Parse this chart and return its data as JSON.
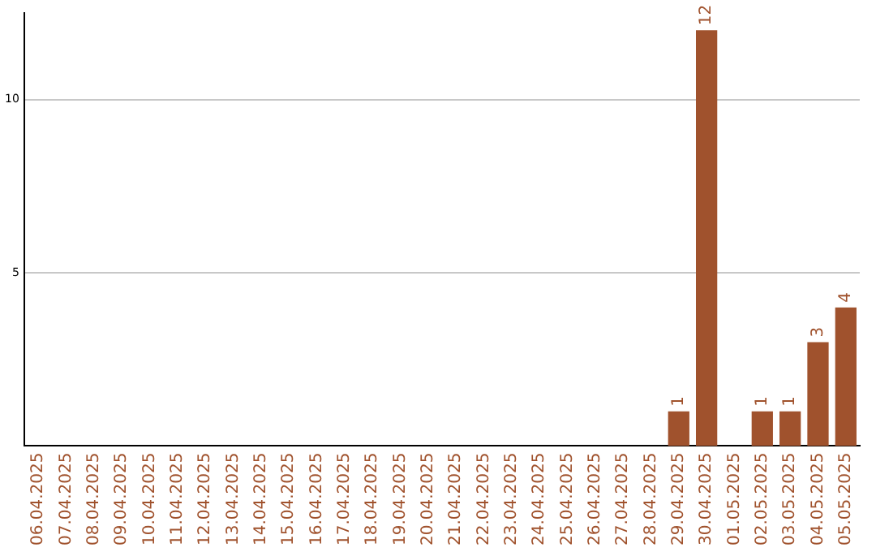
{
  "chart_data": {
    "type": "bar",
    "categories": [
      "06.04.2025",
      "07.04.2025",
      "08.04.2025",
      "09.04.2025",
      "10.04.2025",
      "11.04.2025",
      "12.04.2025",
      "13.04.2025",
      "14.04.2025",
      "15.04.2025",
      "16.04.2025",
      "17.04.2025",
      "18.04.2025",
      "19.04.2025",
      "20.04.2025",
      "21.04.2025",
      "22.04.2025",
      "23.04.2025",
      "24.04.2025",
      "25.04.2025",
      "26.04.2025",
      "27.04.2025",
      "28.04.2025",
      "29.04.2025",
      "30.04.2025",
      "01.05.2025",
      "02.05.2025",
      "03.05.2025",
      "04.05.2025",
      "05.05.2025"
    ],
    "values": [
      0,
      0,
      0,
      0,
      0,
      0,
      0,
      0,
      0,
      0,
      0,
      0,
      0,
      0,
      0,
      0,
      0,
      0,
      0,
      0,
      0,
      0,
      0,
      1,
      12,
      0,
      1,
      1,
      3,
      4
    ],
    "value_labels": [
      null,
      null,
      null,
      null,
      null,
      null,
      null,
      null,
      null,
      null,
      null,
      null,
      null,
      null,
      null,
      null,
      null,
      null,
      null,
      null,
      null,
      null,
      null,
      "1",
      "12",
      null,
      "1",
      "1",
      "3",
      "4"
    ],
    "color": "#a0522d",
    "ylim": [
      0,
      12.5
    ],
    "yticks": [
      5,
      10
    ],
    "grid": "y",
    "legend": false
  }
}
